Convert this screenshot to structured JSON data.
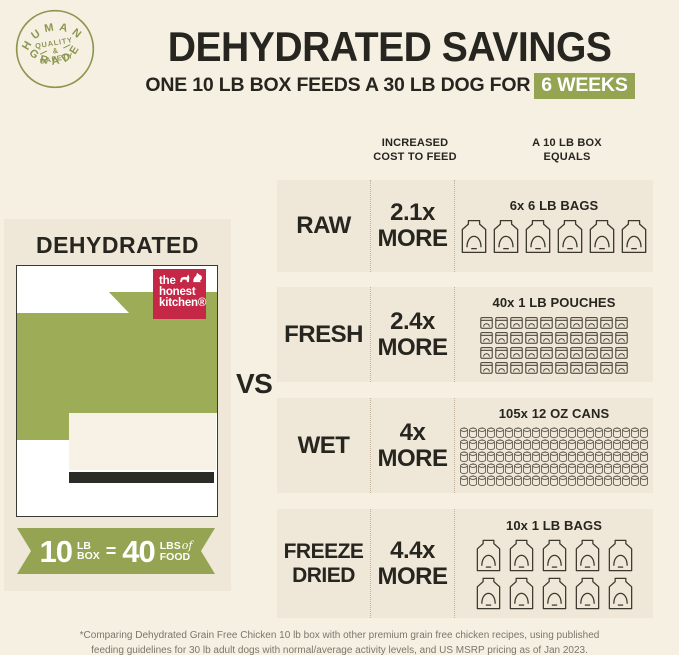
{
  "badge": {
    "arc_top": "HUMAN",
    "arc_bottom": "GRADE",
    "center_line1": "QUALITY",
    "center_amp": "&",
    "center_line2": "SAFETY"
  },
  "header": {
    "title": "DEHYDRATED SAVINGS",
    "subtitle_prefix": "ONE 10 LB BOX FEEDS A 30 LB DOG FOR",
    "subtitle_highlight": "6 WEEKS"
  },
  "table_headers": {
    "cost_line1": "INCREASED",
    "cost_line2": "COST TO FEED",
    "equals_line1": "A 10 LB BOX",
    "equals_line2": "EQUALS"
  },
  "left_panel": {
    "heading": "DEHYDRATED",
    "brand": {
      "line1": "the",
      "line2": "honest",
      "line3": "kitchen®"
    },
    "ribbon": {
      "value1": "10",
      "unit1_top": "LB",
      "unit1_bottom": "BOX",
      "equals": "=",
      "value2": "40",
      "unit2_top": "LBS",
      "unit2_of": "of",
      "unit2_bottom": "FOOD"
    }
  },
  "vs_label": "VS",
  "rows": [
    {
      "label": "RAW",
      "multiplier": "2.1x",
      "more": "MORE",
      "caption": "6x 6 LB BAGS",
      "icon": "bag",
      "count": 6,
      "per_row": 6
    },
    {
      "label": "FRESH",
      "multiplier": "2.4x",
      "more": "MORE",
      "caption": "40x 1 LB POUCHES",
      "icon": "pouch",
      "count": 40,
      "per_row": 10
    },
    {
      "label": "WET",
      "multiplier": "4x",
      "more": "MORE",
      "caption": "105x 12 OZ CANS",
      "icon": "can",
      "count": 105,
      "per_row": 21
    },
    {
      "label": "FREEZE DRIED",
      "multiplier": "4.4x",
      "more": "MORE",
      "caption": "10x 1 LB BAGS",
      "icon": "bag",
      "count": 10,
      "per_row": 5
    }
  ],
  "footnote": {
    "line1": "*Comparing Dehydrated Grain Free Chicken 10 lb box with other premium grain free chicken recipes, using published",
    "line2": "feeding guidelines for 30 lb adult dogs with normal/average activity levels, and US MSRP pricing as of Jan 2023."
  },
  "colors": {
    "page_background": "#f6f0e3",
    "panel_background": "#efe7d7",
    "green_box": "#9cac57",
    "green_accent": "#94a452",
    "badge_olive": "#8b9750",
    "brand_red": "#c52746",
    "dark_text": "#26251f",
    "icon_stroke": "#3b382e",
    "footnote_text": "#7c766a"
  },
  "chart_data": {
    "type": "table",
    "title": "DEHYDRATED SAVINGS",
    "subtitle": "ONE 10 LB BOX FEEDS A 30 LB DOG FOR 6 WEEKS",
    "baseline": "DEHYDRATED 10 LB BOX = 40 LBS OF FOOD",
    "categories": [
      "RAW",
      "FRESH",
      "WET",
      "FREEZE DRIED"
    ],
    "series": [
      {
        "name": "INCREASED COST TO FEED",
        "values": [
          2.1,
          2.4,
          4,
          4.4
        ],
        "unit": "x MORE"
      },
      {
        "name": "A 10 LB BOX EQUALS",
        "values": [
          "6x 6 LB BAGS",
          "40x 1 LB POUCHES",
          "105x 12 OZ CANS",
          "10x 1 LB BAGS"
        ]
      }
    ],
    "legend_position": "none",
    "grid": false
  }
}
